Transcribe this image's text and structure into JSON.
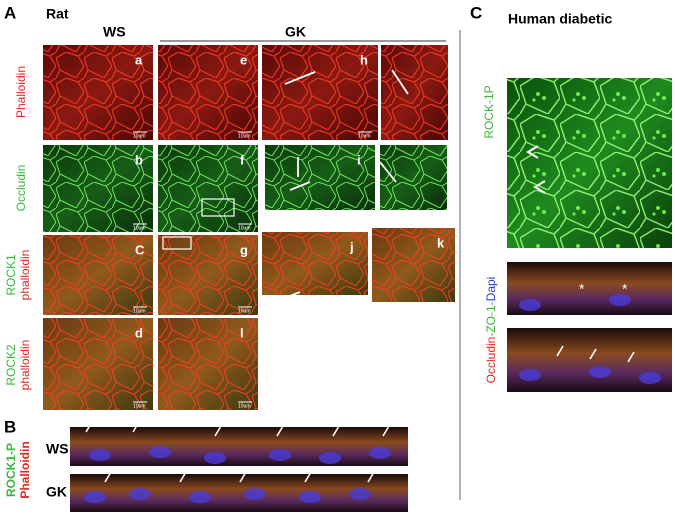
{
  "panel_A": {
    "label": "A",
    "title": "Rat",
    "groups": [
      "WS",
      "GK"
    ],
    "row_labels": [
      [
        "Phalloidin"
      ],
      [
        "Occludin"
      ],
      [
        "ROCK1",
        "phalloidin"
      ],
      [
        "ROCK2",
        "phalloidin"
      ]
    ],
    "image_letters": [
      "a",
      "e",
      "h",
      "b",
      "f",
      "i",
      "C",
      "g",
      "j",
      "k",
      "d",
      "l"
    ],
    "scale_bar": "10um"
  },
  "panel_B": {
    "label": "B",
    "rows": [
      "WS",
      "GK"
    ],
    "stain_labels": [
      "ROCK1-P",
      "Phalloidin"
    ]
  },
  "panel_C": {
    "label": "C",
    "title": "Human diabetic",
    "stain_label": "ROCK-1P",
    "merge_label": [
      "Occludin",
      "-ZO-1-",
      "Dapi"
    ],
    "asterisk": "*"
  }
}
